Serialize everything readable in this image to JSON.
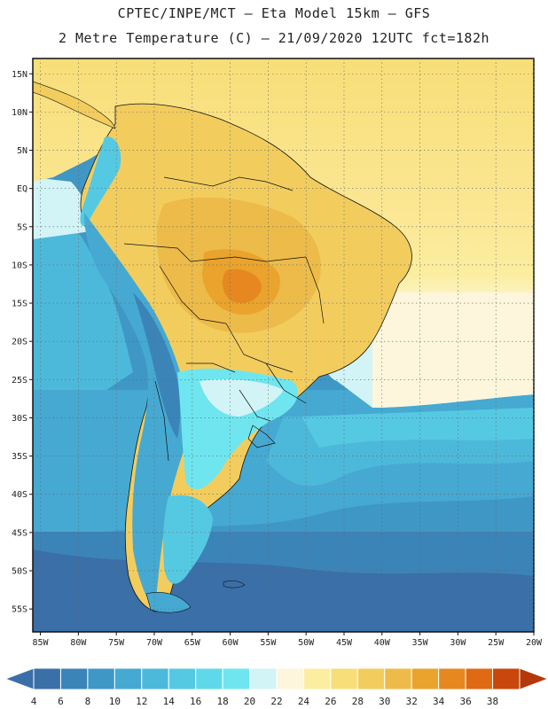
{
  "header": {
    "line1": "CPTEC/INPE/MCT –  Eta Model 15km – GFS",
    "line2": "2 Metre Temperature (C) – 21/09/2020 12UTC fct=182h"
  },
  "map": {
    "lat_labels": [
      "15N",
      "10N",
      "5N",
      "EQ",
      "5S",
      "10S",
      "15S",
      "20S",
      "25S",
      "30S",
      "35S",
      "40S",
      "45S",
      "50S",
      "55S"
    ],
    "lon_labels": [
      "85W",
      "80W",
      "75W",
      "70W",
      "65W",
      "60W",
      "55W",
      "50W",
      "45W",
      "40W",
      "35W",
      "30W",
      "25W",
      "20W"
    ],
    "extent": {
      "lon": [
        -86,
        -20
      ],
      "lat": [
        -58,
        17
      ]
    }
  },
  "colorbar": {
    "ticks": [
      "4",
      "6",
      "8",
      "10",
      "12",
      "14",
      "16",
      "18",
      "20",
      "22",
      "24",
      "26",
      "28",
      "30",
      "32",
      "34",
      "36",
      "38"
    ],
    "colors": [
      "#3a6fa8",
      "#3b84b8",
      "#3f97c5",
      "#46a9d2",
      "#4db9da",
      "#56c9e2",
      "#5fd9e9",
      "#6fe6ef",
      "#d2f4f7",
      "#fdf6dc",
      "#fbeea0",
      "#f8de78",
      "#f2cd5e",
      "#ecbb49",
      "#eaa32c",
      "#e6881f",
      "#df6a13",
      "#c9470c"
    ]
  }
}
